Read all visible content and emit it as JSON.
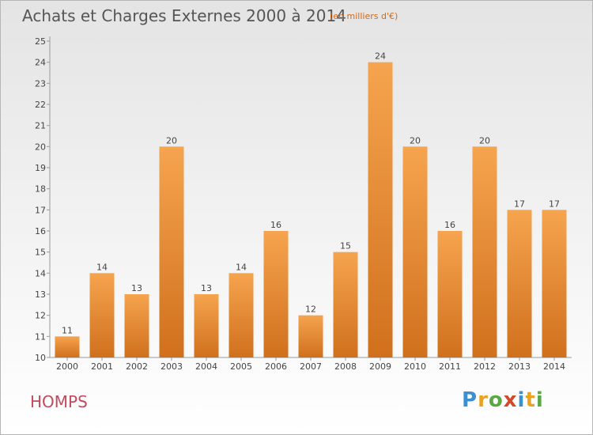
{
  "header": {
    "title": "Achats et Charges Externes 2000 à 2014",
    "unit": "(en milliers d'€)"
  },
  "footer": {
    "commune": "HOMPS",
    "logo_letters": [
      "P",
      "r",
      "o",
      "x",
      "i",
      "t",
      "i"
    ],
    "logo_colors": [
      "#3c8fd0",
      "#e9a31e",
      "#5aa844",
      "#d24a2c",
      "#3c8fd0",
      "#e9a31e",
      "#5aa844"
    ]
  },
  "colors": {
    "bar_top": "#f6a44f",
    "bar_bottom": "#d0701d",
    "title": "#555555",
    "unit": "#d06a18",
    "commune": "#c24a5c"
  },
  "chart_data": {
    "type": "bar",
    "title": "Achats et Charges Externes 2000 à 2014",
    "subtitle": "(en milliers d'€)",
    "categories": [
      "2000",
      "2001",
      "2002",
      "2003",
      "2004",
      "2005",
      "2006",
      "2007",
      "2008",
      "2009",
      "2010",
      "2011",
      "2012",
      "2013",
      "2014"
    ],
    "values": [
      11,
      14,
      13,
      20,
      13,
      14,
      16,
      12,
      15,
      24,
      20,
      16,
      20,
      17,
      17
    ],
    "ylim": [
      10,
      25
    ],
    "yticks": [
      10,
      11,
      12,
      13,
      14,
      15,
      16,
      17,
      18,
      19,
      20,
      21,
      22,
      23,
      24,
      25
    ],
    "grid": false,
    "data_labels": true
  }
}
